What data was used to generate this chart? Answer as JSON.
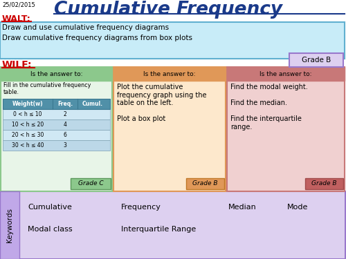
{
  "date": "25/02/2015",
  "title": "Cumulative Frequency",
  "walt_label": "WALT:",
  "walt_lines": [
    "Draw and use cumulative frequency diagrams",
    "Draw cumulative frequency diagrams from box plots"
  ],
  "wilf_label": "WILF:",
  "grade_b_top": "Grade B",
  "box1_header": "Is the answer to:",
  "box1_text": "Fill in the cumulative frequency\ntable.",
  "box1_table_headers": [
    "Weight(w)",
    "Freq.",
    "Cumul."
  ],
  "box1_table_rows": [
    [
      "0 < h ≤ 10",
      "2",
      ""
    ],
    [
      "10 < h ≤ 20",
      "4",
      ""
    ],
    [
      "20 < h ≤ 30",
      "6",
      ""
    ],
    [
      "30 < h ≤ 40",
      "3",
      ""
    ]
  ],
  "box1_grade": "Grade C",
  "box2_header": "Is the answer to:",
  "box2_text": "Plot the cumulative\nfrequency graph using the\ntable on the left.\n\nPlot a box plot",
  "box2_grade": "Grade B",
  "box3_header": "Is the answer to:",
  "box3_text": "Find the modal weight.\n\nFind the median.\n\nFind the interquartile\nrange.",
  "box3_grade": "Grade B",
  "keywords_label": "Keywords",
  "keywords": [
    "Cumulative",
    "Frequency",
    "Median",
    "Mode",
    "Modal class",
    "Interquartile Range"
  ],
  "bg_color": "#ffffff",
  "title_color": "#1a3a8a",
  "walt_color": "#cc0000",
  "wilf_color": "#cc0000",
  "walt_bg": "#c8ecf8",
  "walt_border": "#60b0d0",
  "box1_header_bg": "#8cc88c",
  "box1_bg": "#e8f5e8",
  "box1_border": "#8cc88c",
  "box1_table_header_bg": "#5090a8",
  "box1_table_header_color": "#ffffff",
  "box1_table_row_bg1": "#d0e8f4",
  "box1_table_row_bg2": "#bcd8e8",
  "box1_grade_bg": "#8cc88c",
  "box2_header_bg": "#e09858",
  "box2_bg": "#fde8cc",
  "box2_border": "#e09858",
  "box2_grade_bg": "#e09858",
  "box3_header_bg": "#c87878",
  "box3_bg": "#f0d0d0",
  "box3_border": "#c87878",
  "box3_grade_bg": "#c06060",
  "keywords_bg": "#ddd0f0",
  "keywords_sidebar_bg": "#c0a8e8",
  "keywords_border": "#9978cc",
  "grade_b_top_bg": "#ddd0f0",
  "grade_b_top_border": "#9978cc"
}
